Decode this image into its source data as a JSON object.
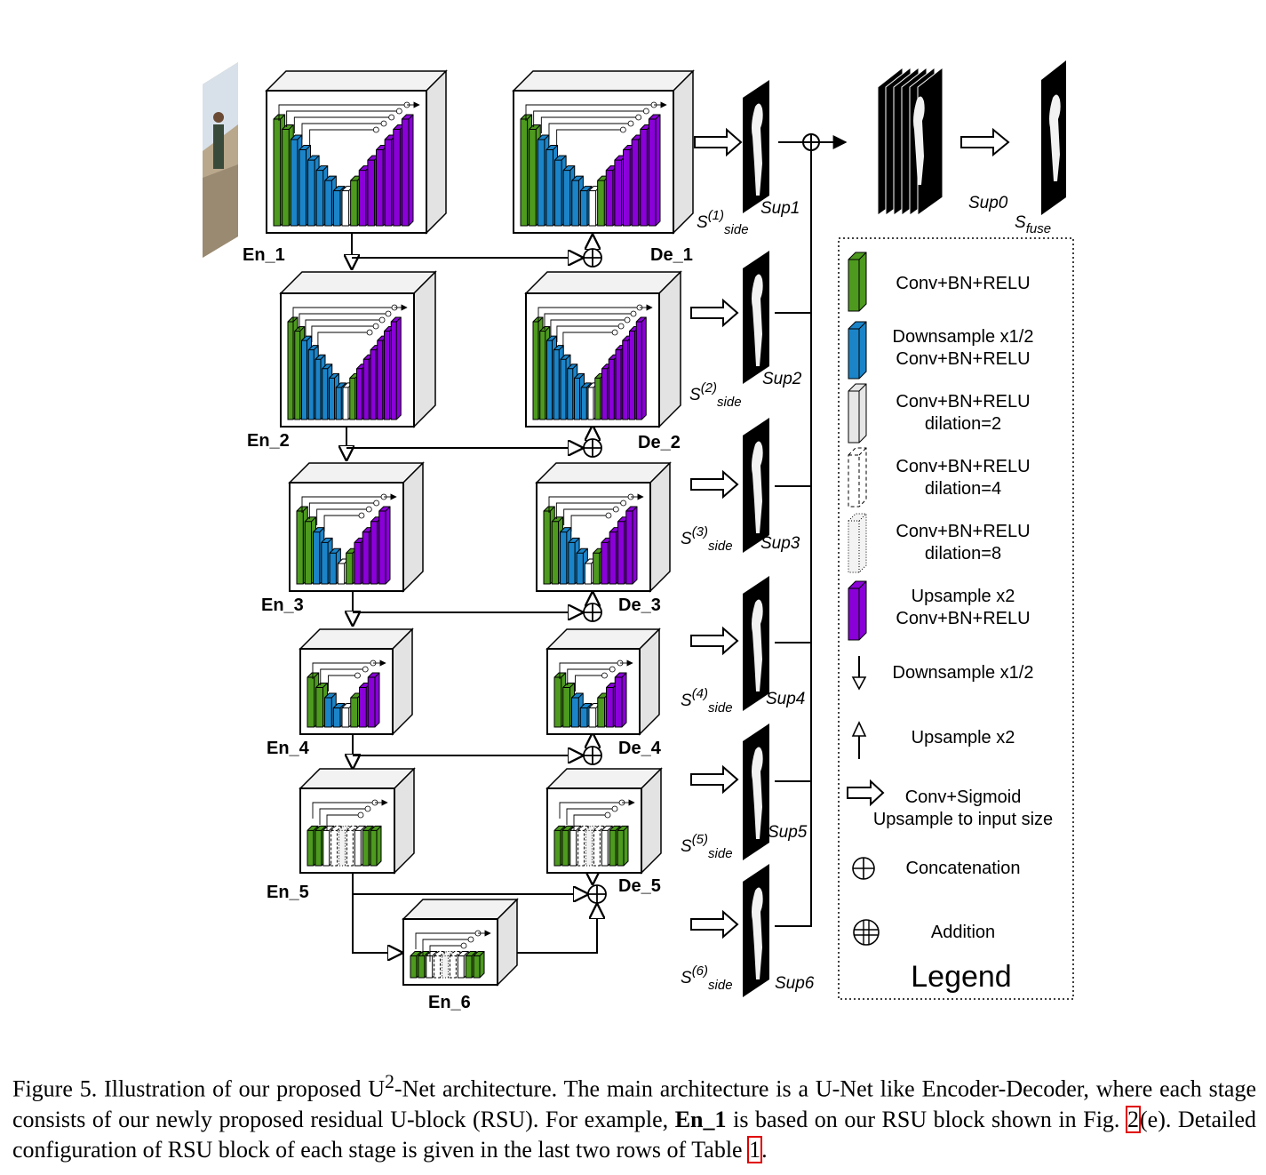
{
  "diagram": {
    "encoders": [
      {
        "id": "En_1",
        "label": "En_1"
      },
      {
        "id": "En_2",
        "label": "En_2"
      },
      {
        "id": "En_3",
        "label": "En_3"
      },
      {
        "id": "En_4",
        "label": "En_4"
      },
      {
        "id": "En_5",
        "label": "En_5"
      },
      {
        "id": "En_6",
        "label": "En_6"
      }
    ],
    "decoders": [
      {
        "id": "De_1",
        "label": "De_1"
      },
      {
        "id": "De_2",
        "label": "De_2"
      },
      {
        "id": "De_3",
        "label": "De_3"
      },
      {
        "id": "De_4",
        "label": "De_4"
      },
      {
        "id": "De_5",
        "label": "De_5"
      }
    ],
    "side_outputs": [
      {
        "s_base": "S",
        "s_sup": "(1)",
        "s_sub": "side",
        "sup": "Sup1"
      },
      {
        "s_base": "S",
        "s_sup": "(2)",
        "s_sub": "side",
        "sup": "Sup2"
      },
      {
        "s_base": "S",
        "s_sup": "(3)",
        "s_sub": "side",
        "sup": "Sup3"
      },
      {
        "s_base": "S",
        "s_sup": "(4)",
        "s_sub": "side",
        "sup": "Sup4"
      },
      {
        "s_base": "S",
        "s_sup": "(5)",
        "s_sub": "side",
        "sup": "Sup5"
      },
      {
        "s_base": "S",
        "s_sup": "(6)",
        "s_sub": "side",
        "sup": "Sup6"
      }
    ],
    "fuse": {
      "sup": "Sup0",
      "s_base": "S",
      "s_sub": "fuse"
    },
    "colors": {
      "conv": "#4d9a1f",
      "down": "#1b84c9",
      "up": "#8a00d8",
      "frame": "#000000",
      "cube_side": "#e3e3e3"
    }
  },
  "legend": {
    "title": "Legend",
    "items": [
      {
        "icon": "green-block-icon",
        "lines": [
          "Conv+BN+RELU"
        ]
      },
      {
        "icon": "blue-block-icon",
        "lines": [
          "Downsample x1/2",
          "Conv+BN+RELU"
        ]
      },
      {
        "icon": "white-block-icon",
        "lines": [
          "Conv+BN+RELU",
          "dilation=2"
        ]
      },
      {
        "icon": "dashed-block-icon",
        "lines": [
          "Conv+BN+RELU",
          "dilation=4"
        ]
      },
      {
        "icon": "dotted-block-icon",
        "lines": [
          "Conv+BN+RELU",
          "dilation=8"
        ]
      },
      {
        "icon": "purple-block-icon",
        "lines": [
          "Upsample x2",
          "Conv+BN+RELU"
        ]
      },
      {
        "icon": "down-arrow-icon",
        "lines": [
          "Downsample x1/2"
        ]
      },
      {
        "icon": "up-arrow-icon",
        "lines": [
          "Upsample x2"
        ]
      },
      {
        "icon": "hollow-arrow-icon",
        "lines": [
          "Conv+Sigmoid",
          "Upsample to input size"
        ]
      },
      {
        "icon": "concatenation-icon",
        "lines": [
          "Concatenation"
        ]
      },
      {
        "icon": "addition-icon",
        "lines": [
          "Addition"
        ]
      }
    ]
  },
  "caption": {
    "prefix": "Figure 5. Illustration of our proposed U",
    "sup": "2",
    "middle": "-Net architecture. The main architecture is a U-Net like Encoder-Decoder, where each stage consists of our newly proposed residual U-block (RSU). For example, ",
    "bold": "En_1",
    "after_bold": " is based on our RSU block shown in Fig. ",
    "fig_ref": "2",
    "after_fig": "(e). Detailed configuration of RSU block of each stage is given in the last two rows of Table ",
    "table_ref": "1",
    "end": "."
  }
}
